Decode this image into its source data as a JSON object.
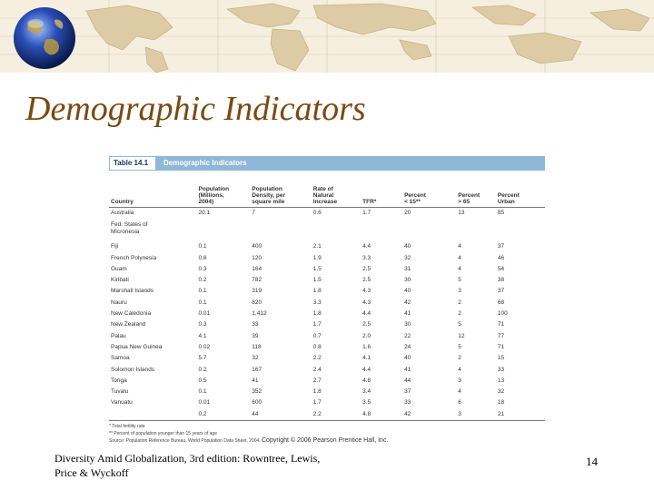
{
  "slide_title": "Demographic Indicators",
  "table": {
    "tag": "Table 14.1",
    "name": "Demographic Indicators",
    "columns": [
      "Country",
      "Population\n(Millions,\n2004)",
      "Population\nDensity, per\nsquare mile",
      "Rate of\nNatural\nIncrease",
      "TFR*",
      "Percent\n< 15**",
      "Percent\n> 65",
      "Percent\nUrban"
    ],
    "rows": [
      [
        "Australia",
        "20.1",
        "7",
        "0.6",
        "1.7",
        "20",
        "13",
        "85"
      ],
      [
        "Fed. States of\n   Micronesia",
        "",
        "",
        "",
        "",
        "",
        "",
        ""
      ],
      [
        "Fiji",
        "0.1",
        "400",
        "2.1",
        "4.4",
        "40",
        "4",
        "37"
      ],
      [
        "French Polynesia",
        "0.8",
        "120",
        "1.9",
        "3.3",
        "32",
        "4",
        "46"
      ],
      [
        "Guam",
        "0.3",
        "164",
        "1.5",
        "2.5",
        "31",
        "4",
        "54"
      ],
      [
        "Kiribati",
        "0.2",
        "782",
        "1.5",
        "2.5",
        "30",
        "5",
        "38"
      ],
      [
        "Marshall Islands",
        "0.1",
        "319",
        "1.8",
        "4.3",
        "40",
        "3",
        "37"
      ],
      [
        "Nauru",
        "0.1",
        "820",
        "3.3",
        "4.3",
        "42",
        "2",
        "68"
      ],
      [
        "New Caledonia",
        "0.01",
        "1,412",
        "1.8",
        "4.4",
        "41",
        "2",
        "100"
      ],
      [
        "New Zealand",
        "0.3",
        "33",
        "1.7",
        "2.5",
        "30",
        "5",
        "71"
      ],
      [
        "Palau",
        "4.1",
        "39",
        "0.7",
        "2.0",
        "22",
        "12",
        "77"
      ],
      [
        "Papua New Guinea",
        "0.02",
        "118",
        "0.8",
        "1.6",
        "24",
        "5",
        "71"
      ],
      [
        "Samoa",
        "5.7",
        "32",
        "2.2",
        "4.1",
        "40",
        "2",
        "15"
      ],
      [
        "Solomon Islands",
        "0.2",
        "167",
        "2.4",
        "4.4",
        "41",
        "4",
        "33"
      ],
      [
        "Tonga",
        "0.5",
        "41",
        "2.7",
        "4.8",
        "44",
        "3",
        "13"
      ],
      [
        "Tuvalu",
        "0.1",
        "352",
        "1.8",
        "3.4",
        "37",
        "4",
        "32"
      ],
      [
        "Vanuatu",
        "0.01",
        "600",
        "1.7",
        "3.5",
        "33",
        "6",
        "18"
      ],
      [
        "",
        "0.2",
        "44",
        "2.2",
        "4.8",
        "42",
        "3",
        "21"
      ]
    ],
    "notes": [
      "* Total fertility rate",
      "** Percent of population younger than 15 years of age",
      "Source: Population Reference Bureau, World Population Data Sheet, 2004."
    ],
    "copyright": "Copyright © 2006 Pearson Prentice Hall, Inc."
  },
  "footer": {
    "citation": "Diversity Amid Globalization, 3rd edition: Rowntree, Lewis, Price & Wyckoff",
    "page_number": "14"
  },
  "colors": {
    "title": "#7a4a12",
    "table_header_band": "#8fb8d8",
    "map_background": "#f6efe0"
  },
  "icons": {
    "header_image": "world-map-icon",
    "globe": "globe-icon"
  }
}
